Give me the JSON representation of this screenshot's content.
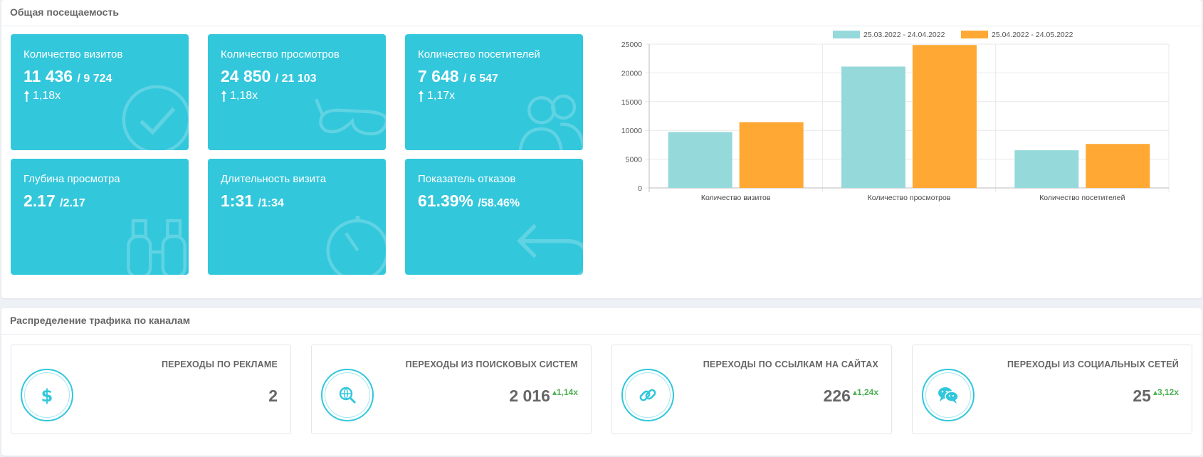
{
  "attendance": {
    "title": "Общая посещаемость",
    "tiles": [
      {
        "label": "Количество визитов",
        "value": "11 436",
        "prev": "/ 9 724",
        "ratio": "1,18x",
        "icon": "checkmark-icon"
      },
      {
        "label": "Количество просмотров",
        "value": "24 850",
        "prev": "/ 21 103",
        "ratio": "1,18x",
        "icon": "glasses-icon"
      },
      {
        "label": "Количество посетителей",
        "value": "7 648",
        "prev": "/ 6 547",
        "ratio": "1,17x",
        "icon": "users-icon"
      },
      {
        "label": "Глубина просмотра",
        "value": "2.17",
        "prev": "/2.17",
        "ratio": "",
        "icon": "binoculars-icon"
      },
      {
        "label": "Длительность визита",
        "value": "1:31",
        "prev": "/1:34",
        "ratio": "",
        "icon": "stopwatch-icon"
      },
      {
        "label": "Показатель отказов",
        "value": "61.39%",
        "prev": "/58.46%",
        "ratio": "",
        "icon": "return-arrow-icon"
      }
    ]
  },
  "chart_data": {
    "type": "bar",
    "categories": [
      "Количество визитов",
      "Количество просмотров",
      "Количество посетителей"
    ],
    "series": [
      {
        "name": "25.03.2022 - 24.04.2022",
        "values": [
          9724,
          21103,
          6547
        ],
        "color": "#96d9db"
      },
      {
        "name": "25.04.2022 - 24.05.2022",
        "values": [
          11436,
          24850,
          7648
        ],
        "color": "#ffa834"
      }
    ],
    "ylim": [
      0,
      25000
    ],
    "yticks": [
      0,
      5000,
      10000,
      15000,
      20000,
      25000
    ],
    "legend": "top",
    "grid": true
  },
  "traffic": {
    "title": "Распределение трафика по каналам",
    "cards": [
      {
        "title": "ПЕРЕХОДЫ ПО РЕКЛАМЕ",
        "value": "2",
        "growth": "",
        "icon": "dollar-icon"
      },
      {
        "title": "ПЕРЕХОДЫ ИЗ ПОИСКОВЫХ СИСТЕМ",
        "value": "2 016",
        "growth": "1,14x",
        "icon": "search-globe-icon"
      },
      {
        "title": "ПЕРЕХОДЫ ПО ССЫЛКАМ НА САЙТАХ",
        "value": "226",
        "growth": "1,24x",
        "icon": "link-icon"
      },
      {
        "title": "ПЕРЕХОДЫ ИЗ СОЦИАЛЬНЫХ СЕТЕЙ",
        "value": "25",
        "growth": "3,12x",
        "icon": "chat-bubbles-icon"
      }
    ]
  }
}
